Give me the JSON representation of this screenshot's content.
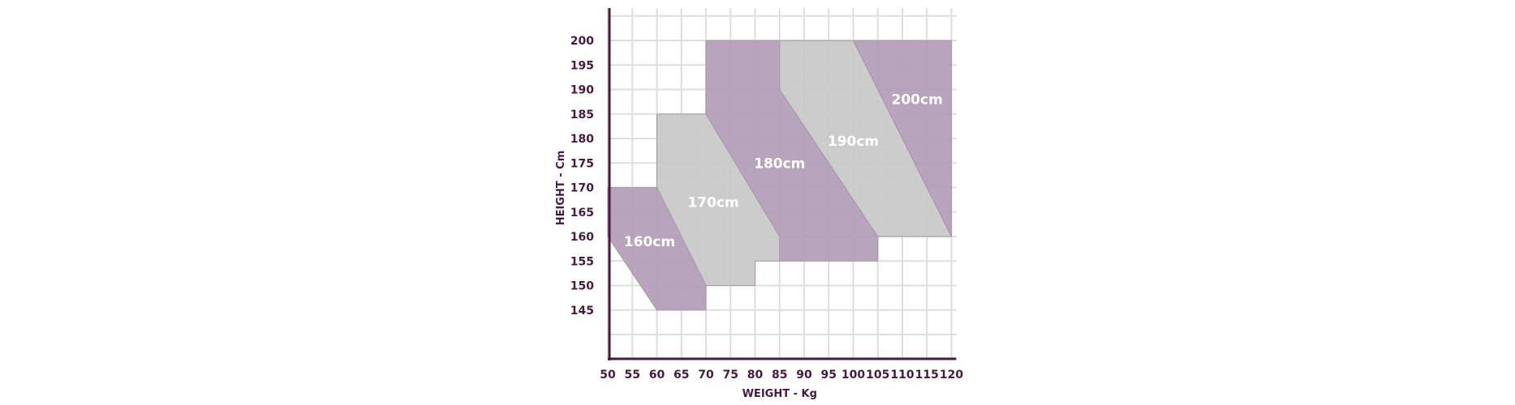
{
  "chart_data": {
    "type": "area",
    "xlabel": "WEIGHT - Kg",
    "ylabel": "HEIGHT - Cm",
    "xlim": [
      50,
      120
    ],
    "ylim": [
      140,
      205
    ],
    "x_ticks": [
      50,
      55,
      60,
      65,
      70,
      75,
      80,
      85,
      90,
      95,
      100,
      105,
      110,
      115,
      120
    ],
    "y_ticks": [
      145,
      150,
      155,
      160,
      165,
      170,
      175,
      180,
      185,
      190,
      195,
      200
    ],
    "grid": true,
    "colors": {
      "purple": "#b29cb6",
      "grey": "#c8c8c8",
      "axis": "#4a1942",
      "tick_text": "#4a1942",
      "grid": "#dedede"
    },
    "regions": [
      {
        "name": "160cm",
        "label": "160cm",
        "color": "purple",
        "polygon": [
          [
            50,
            170
          ],
          [
            60,
            170
          ],
          [
            70,
            150
          ],
          [
            70,
            145
          ],
          [
            60,
            145
          ],
          [
            50,
            160
          ]
        ],
        "label_at": [
          58.5,
          159
        ]
      },
      {
        "name": "170cm",
        "label": "170cm",
        "color": "grey",
        "polygon": [
          [
            60,
            185
          ],
          [
            70,
            185
          ],
          [
            85,
            160
          ],
          [
            85,
            155
          ],
          [
            80,
            155
          ],
          [
            80,
            150
          ],
          [
            70,
            150
          ],
          [
            60,
            170
          ]
        ],
        "label_at": [
          71.5,
          167
        ]
      },
      {
        "name": "180cm",
        "label": "180cm",
        "color": "purple",
        "polygon": [
          [
            70,
            200
          ],
          [
            85,
            200
          ],
          [
            85,
            190
          ],
          [
            105,
            160
          ],
          [
            105,
            155
          ],
          [
            85,
            155
          ],
          [
            85,
            160
          ],
          [
            70,
            185
          ]
        ],
        "label_at": [
          85,
          175
        ]
      },
      {
        "name": "190cm",
        "label": "190cm",
        "color": "grey",
        "polygon": [
          [
            85,
            200
          ],
          [
            100,
            200
          ],
          [
            120,
            160
          ],
          [
            105,
            160
          ],
          [
            85,
            190
          ]
        ],
        "label_at": [
          100,
          179.5
        ]
      },
      {
        "name": "200cm",
        "label": "200cm",
        "color": "purple",
        "polygon": [
          [
            100,
            200
          ],
          [
            120,
            200
          ],
          [
            120,
            160
          ]
        ],
        "label_at": [
          113,
          188
        ]
      }
    ]
  }
}
